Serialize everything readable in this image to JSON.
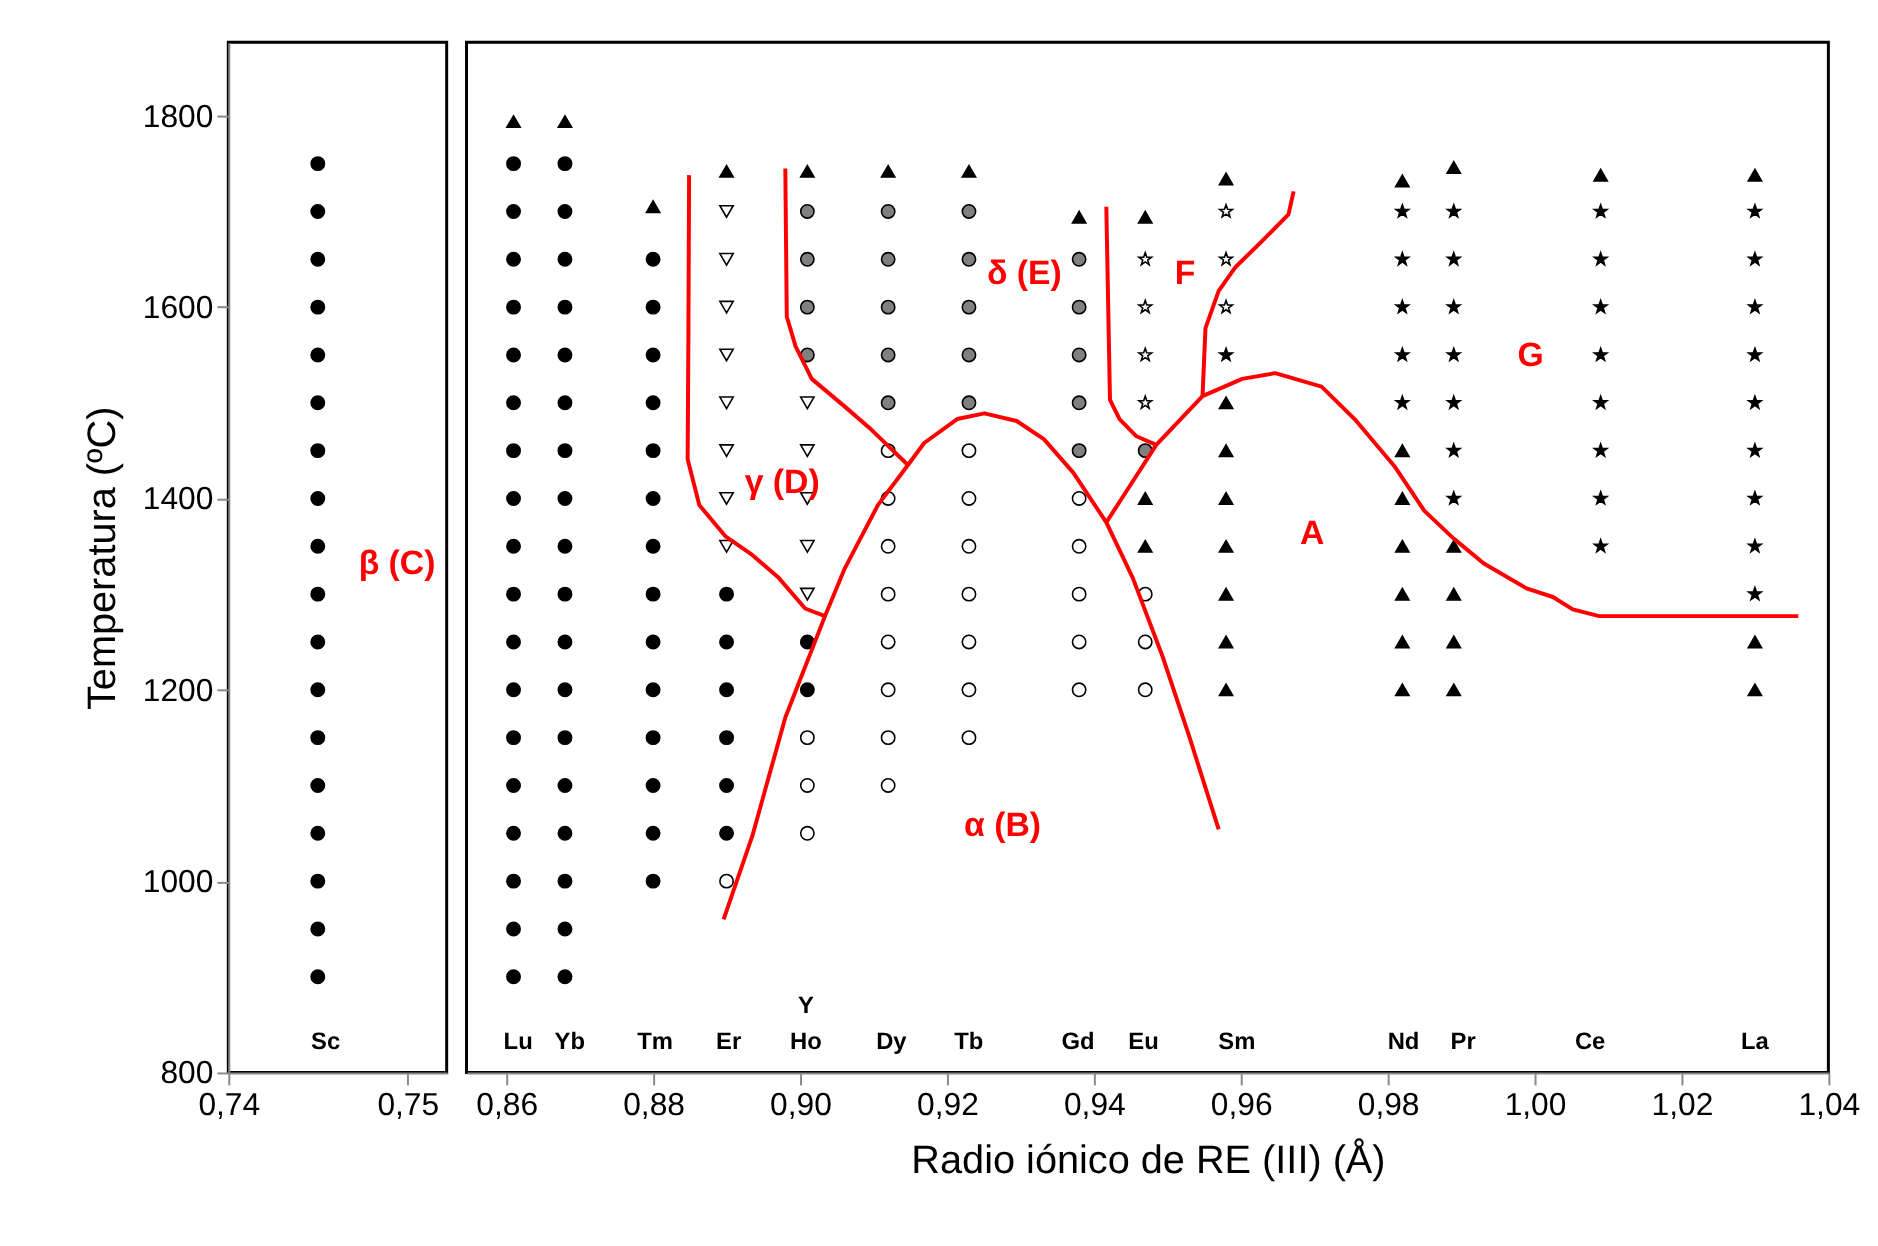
{
  "chart_data": [
    {
      "type": "scatter",
      "ylabel": "Temperatura (ºC)",
      "xlim": [
        0.74,
        0.7522
      ],
      "ylim": [
        800,
        1877
      ],
      "xticks": [
        {
          "value": 0.74,
          "label": "0,74"
        },
        {
          "value": 0.75,
          "label": "0,75"
        }
      ],
      "yticks": [
        800,
        1000,
        1200,
        1400,
        1600,
        1800
      ],
      "grid": false,
      "annotations": [
        "Sc",
        "β (C)"
      ],
      "series": [
        {
          "type": "scatter",
          "marker": "circle",
          "color": "#000000",
          "x": [
            0.745,
            0.745,
            0.745,
            0.745,
            0.745,
            0.745,
            0.745,
            0.745,
            0.745,
            0.745,
            0.745,
            0.745,
            0.745,
            0.745,
            0.745,
            0.745,
            0.745,
            0.745
          ],
          "values": [
            900,
            950,
            1000,
            1050,
            1100,
            1150,
            1200,
            1250,
            1300,
            1350,
            1400,
            1450,
            1500,
            1550,
            1600,
            1650,
            1700,
            1750
          ]
        }
      ]
    },
    {
      "type": "scatter",
      "xlabel": "Radio iónico de RE (III) (Å)",
      "xlim": [
        0.8546,
        1.04
      ],
      "ylim": [
        800,
        1877
      ],
      "xticks": [
        {
          "value": 0.86,
          "label": "0,86"
        },
        {
          "value": 0.88,
          "label": "0,88"
        },
        {
          "value": 0.9,
          "label": "0,90"
        },
        {
          "value": 0.92,
          "label": "0,92"
        },
        {
          "value": 0.94,
          "label": "0,94"
        },
        {
          "value": 0.96,
          "label": "0,96"
        },
        {
          "value": 0.98,
          "label": "0,98"
        },
        {
          "value": 1.0,
          "label": "1,00"
        },
        {
          "value": 1.02,
          "label": "1,02"
        },
        {
          "value": 1.04,
          "label": "1,04"
        }
      ],
      "yticks": [
        800,
        1000,
        1200,
        1400,
        1600,
        1800
      ],
      "tick_labels": "x",
      "grid": false,
      "annotations": [
        "Lu",
        "Yb",
        "Tm",
        "Er",
        "Ho",
        "Y",
        "Dy",
        "Tb",
        "Gd",
        "Eu",
        "Sm",
        "Nd",
        "Pr",
        "Ce",
        "La",
        "γ (D)",
        "δ (E)",
        "F",
        "G",
        "A",
        "α (B)"
      ],
      "series": [
        {
          "type": "scatter",
          "marker": "circle",
          "color": "#000000",
          "x": [
            0.861,
            0.861,
            0.861,
            0.861,
            0.861,
            0.861,
            0.861,
            0.861,
            0.861,
            0.861,
            0.861,
            0.861,
            0.861,
            0.861,
            0.861,
            0.861,
            0.861,
            0.861,
            0.868,
            0.868,
            0.868,
            0.868,
            0.868,
            0.868,
            0.868,
            0.868,
            0.868,
            0.868,
            0.868,
            0.868,
            0.868,
            0.868,
            0.868,
            0.868,
            0.868,
            0.868,
            0.88,
            0.88,
            0.88,
            0.88,
            0.88,
            0.88,
            0.88,
            0.88,
            0.88,
            0.88,
            0.88,
            0.88,
            0.88,
            0.88,
            0.89,
            0.89,
            0.89,
            0.89,
            0.89,
            0.89,
            0.901,
            0.901
          ],
          "values": [
            900,
            950,
            1000,
            1050,
            1100,
            1150,
            1200,
            1250,
            1300,
            1350,
            1400,
            1450,
            1500,
            1550,
            1600,
            1650,
            1700,
            1750,
            900,
            950,
            1000,
            1050,
            1100,
            1150,
            1200,
            1250,
            1300,
            1350,
            1400,
            1450,
            1500,
            1550,
            1600,
            1650,
            1700,
            1750,
            1000,
            1050,
            1100,
            1150,
            1200,
            1250,
            1300,
            1350,
            1400,
            1450,
            1500,
            1550,
            1600,
            1650,
            1050,
            1100,
            1150,
            1200,
            1250,
            1300,
            1200,
            1250
          ]
        },
        {
          "type": "scatter",
          "marker": "circle",
          "color": "#ffffff",
          "x": [
            0.89,
            0.901,
            0.901,
            0.901,
            0.912,
            0.912,
            0.912,
            0.912,
            0.912,
            0.912,
            0.912,
            0.912,
            0.923,
            0.923,
            0.923,
            0.923,
            0.923,
            0.923,
            0.923,
            0.938,
            0.938,
            0.938,
            0.938,
            0.938,
            0.947,
            0.947,
            0.947
          ],
          "values": [
            1000,
            1050,
            1100,
            1150,
            1100,
            1150,
            1200,
            1250,
            1300,
            1350,
            1400,
            1450,
            1150,
            1200,
            1250,
            1300,
            1350,
            1400,
            1450,
            1200,
            1250,
            1300,
            1350,
            1400,
            1200,
            1250,
            1300
          ]
        },
        {
          "type": "scatter",
          "marker": "circle",
          "color": "#808080",
          "x": [
            0.901,
            0.901,
            0.901,
            0.901,
            0.912,
            0.912,
            0.912,
            0.912,
            0.912,
            0.923,
            0.923,
            0.923,
            0.923,
            0.923,
            0.938,
            0.938,
            0.938,
            0.938,
            0.938,
            0.947
          ],
          "values": [
            1550,
            1600,
            1650,
            1700,
            1500,
            1550,
            1600,
            1650,
            1700,
            1500,
            1550,
            1600,
            1650,
            1700,
            1450,
            1500,
            1550,
            1600,
            1650,
            1450
          ]
        },
        {
          "type": "scatter",
          "marker": "triangle-down",
          "color": "#ffffff",
          "x": [
            0.89,
            0.89,
            0.89,
            0.89,
            0.89,
            0.89,
            0.89,
            0.89,
            0.901,
            0.901,
            0.901,
            0.901,
            0.901
          ],
          "values": [
            1350,
            1400,
            1450,
            1500,
            1550,
            1600,
            1650,
            1700,
            1300,
            1350,
            1400,
            1450,
            1500
          ]
        },
        {
          "type": "scatter",
          "marker": "triangle",
          "color": "#000000",
          "x": [
            0.947,
            0.947,
            0.958,
            0.958,
            0.958,
            0.958,
            0.958,
            0.958,
            0.958,
            0.982,
            0.982,
            0.982,
            0.982,
            0.982,
            0.982,
            0.989,
            0.989,
            0.989,
            0.989,
            1.03,
            1.03
          ],
          "values": [
            1350,
            1400,
            1200,
            1250,
            1300,
            1350,
            1400,
            1450,
            1500,
            1200,
            1250,
            1300,
            1350,
            1400,
            1450,
            1200,
            1250,
            1300,
            1350,
            1200,
            1250
          ]
        },
        {
          "type": "scatter",
          "marker": "star",
          "color": "#ffffff",
          "x": [
            0.947,
            0.947,
            0.947,
            0.947,
            0.958,
            0.958,
            0.958
          ],
          "values": [
            1500,
            1550,
            1600,
            1650,
            1600,
            1650,
            1700
          ]
        },
        {
          "type": "scatter",
          "marker": "star",
          "color": "#000000",
          "x": [
            0.958,
            0.982,
            0.982,
            0.982,
            0.982,
            0.982,
            0.989,
            0.989,
            0.989,
            0.989,
            0.989,
            0.989,
            0.989,
            1.009,
            1.009,
            1.009,
            1.009,
            1.009,
            1.009,
            1.009,
            1.009,
            1.03,
            1.03,
            1.03,
            1.03,
            1.03,
            1.03,
            1.03,
            1.03,
            1.03
          ],
          "values": [
            1550,
            1500,
            1550,
            1600,
            1650,
            1700,
            1400,
            1450,
            1500,
            1550,
            1600,
            1650,
            1700,
            1350,
            1400,
            1450,
            1500,
            1550,
            1600,
            1650,
            1700,
            1300,
            1350,
            1400,
            1450,
            1500,
            1550,
            1600,
            1650,
            1700
          ]
        },
        {
          "type": "scatter",
          "marker": "triangle",
          "color": "#000000",
          "x": [
            0.861,
            0.868,
            0.88,
            0.89,
            0.901,
            0.912,
            0.923,
            0.938,
            0.947,
            0.958,
            0.982,
            0.989,
            1.009,
            1.03
          ],
          "values": [
            1794,
            1794,
            1705,
            1742,
            1742,
            1742,
            1742,
            1694,
            1694,
            1734,
            1732,
            1746,
            1738,
            1738
          ]
        },
        {
          "type": "line",
          "marker": "none",
          "line_style": "solid",
          "color": "#ff0000",
          "x": [
            0.8849,
            0.8848,
            0.8847,
            0.8863,
            0.8899,
            0.8935,
            0.8971,
            0.9007,
            0.9034
          ],
          "values": [
            1738,
            1559,
            1441,
            1393,
            1360,
            1341,
            1317,
            1285,
            1277
          ]
        },
        {
          "type": "line",
          "marker": "none",
          "line_style": "solid",
          "color": "#ff0000",
          "x": [
            0.8896,
            0.8935,
            0.898,
            0.9034,
            0.9061,
            0.9106,
            0.9147,
            0.9169,
            0.9214,
            0.9251,
            0.9295,
            0.9332,
            0.9372,
            0.9417,
            0.9453,
            0.9494,
            0.953,
            0.957
          ],
          "values": [
            960,
            1047,
            1171,
            1277,
            1327,
            1393,
            1435,
            1458,
            1483,
            1489,
            1481,
            1462,
            1427,
            1375,
            1317,
            1234,
            1151,
            1054
          ]
        },
        {
          "type": "line",
          "marker": "none",
          "line_style": "solid",
          "color": "#ff0000",
          "x": [
            0.898,
            0.8982,
            0.8994,
            0.9016,
            0.9061,
            0.9097,
            0.9147
          ],
          "values": [
            1745,
            1590,
            1559,
            1525,
            1496,
            1472,
            1435
          ]
        },
        {
          "type": "line",
          "marker": "none",
          "line_style": "solid",
          "color": "#ff0000",
          "x": [
            0.9417,
            0.9422,
            0.9435,
            0.9458,
            0.9485
          ],
          "values": [
            1705,
            1503,
            1483,
            1465,
            1456
          ]
        },
        {
          "type": "line",
          "marker": "none",
          "line_style": "solid",
          "color": "#ff0000",
          "x": [
            0.9417,
            0.9449,
            0.9485,
            0.9548,
            0.9602,
            0.9647,
            0.971,
            0.9755,
            0.9809,
            0.985,
            0.989,
            0.9931,
            0.9989,
            1.0025,
            1.0052,
            1.0088,
            1.0359
          ],
          "values": [
            1375,
            1413,
            1456,
            1507,
            1525,
            1531,
            1517,
            1483,
            1434,
            1387,
            1358,
            1332,
            1306,
            1297,
            1284,
            1277,
            1277
          ]
        },
        {
          "type": "line",
          "marker": "none",
          "line_style": "solid",
          "color": "#ff0000",
          "x": [
            0.9672,
            0.9665,
            0.9629,
            0.9593,
            0.957,
            0.9552,
            0.9548
          ],
          "values": [
            1721,
            1697,
            1669,
            1642,
            1617,
            1578,
            1507
          ]
        }
      ]
    }
  ]
}
